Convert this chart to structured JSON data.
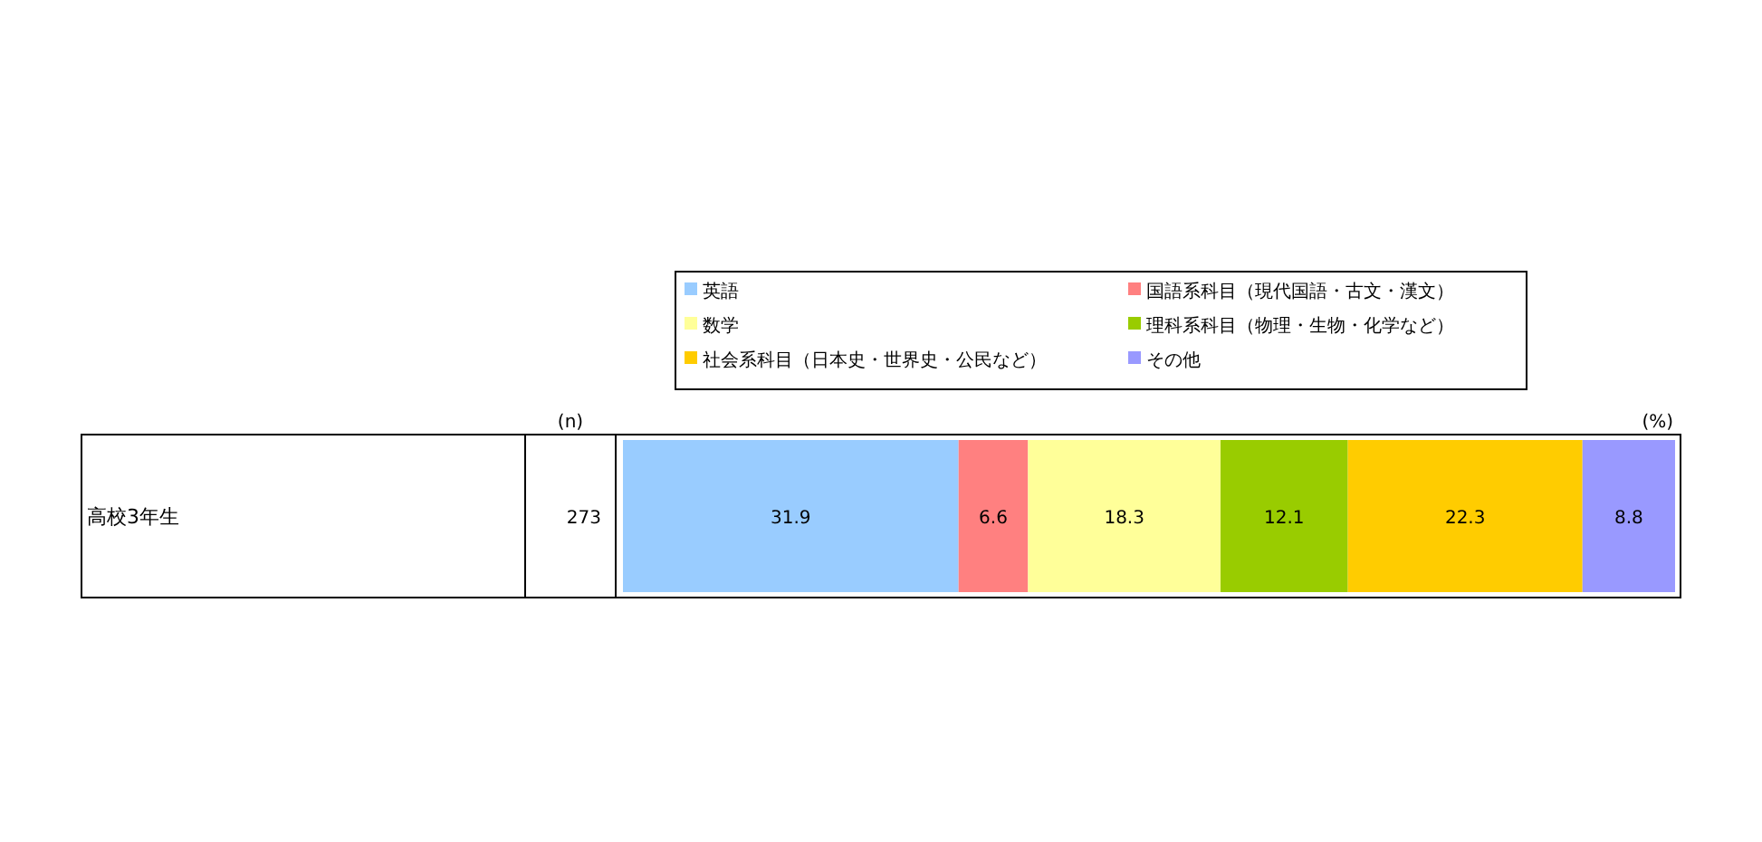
{
  "chart_data": {
    "type": "bar",
    "orientation": "horizontal",
    "stacked": true,
    "categories": [
      "高校3年生"
    ],
    "series": [
      {
        "name": "英語",
        "color": "#99ccff",
        "values": [
          31.9
        ]
      },
      {
        "name": "国語系科目（現代国語・古文・漢文）",
        "color": "#ff8080",
        "values": [
          6.6
        ]
      },
      {
        "name": "数学",
        "color": "#ffff99",
        "values": [
          18.3
        ]
      },
      {
        "name": "理科系科目（物理・生物・化学など）",
        "color": "#99cc00",
        "values": [
          12.1
        ]
      },
      {
        "name": "社会系科目（日本史・世界史・公民など）",
        "color": "#ffcc00",
        "values": [
          22.3
        ]
      },
      {
        "name": "その他",
        "color": "#9999ff",
        "values": [
          8.8
        ]
      }
    ],
    "data_labels": true,
    "legend": "top",
    "annotations": [
      "(n)",
      "273",
      "(%)"
    ]
  }
}
